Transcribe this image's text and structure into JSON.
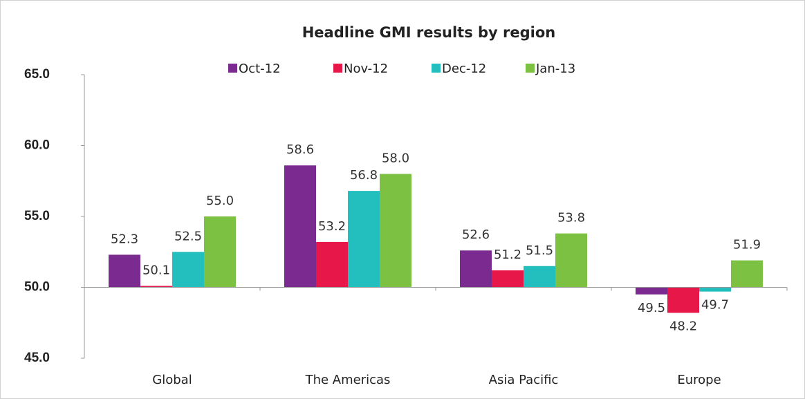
{
  "chart_data": {
    "type": "bar",
    "title": "Headline GMI results by region",
    "categories": [
      "Global",
      "The Americas",
      "Asia Pacific",
      "Europe"
    ],
    "series": [
      {
        "name": "Oct-12",
        "color": "#7b2a90",
        "values": [
          52.3,
          58.6,
          52.6,
          49.5
        ],
        "value_labels": [
          "52.3",
          "58.6",
          "52.6",
          "49.5"
        ]
      },
      {
        "name": "Nov-12",
        "color": "#e8174a",
        "values": [
          50.1,
          53.2,
          51.2,
          48.2
        ],
        "value_labels": [
          "50.1",
          "53.2",
          "51.2",
          "48.2"
        ]
      },
      {
        "name": "Dec-12",
        "color": "#23bfbf",
        "values": [
          52.5,
          56.8,
          51.5,
          49.7
        ],
        "value_labels": [
          "52.5",
          "56.8",
          "51.5",
          "49.7"
        ]
      },
      {
        "name": "Jan-13",
        "color": "#7dc142",
        "values": [
          55.0,
          58.0,
          53.8,
          51.9
        ],
        "value_labels": [
          "55.0",
          "58.0",
          "53.8",
          "51.9"
        ]
      }
    ],
    "ylim": [
      45,
      65
    ],
    "yticks": [
      {
        "value": 45,
        "label": "45.0"
      },
      {
        "value": 50,
        "label": "50.0"
      },
      {
        "value": 55,
        "label": "55.0"
      },
      {
        "value": 60,
        "label": "60.0"
      },
      {
        "value": 65,
        "label": "65.0"
      }
    ],
    "baseline": 50,
    "legend": "top"
  }
}
